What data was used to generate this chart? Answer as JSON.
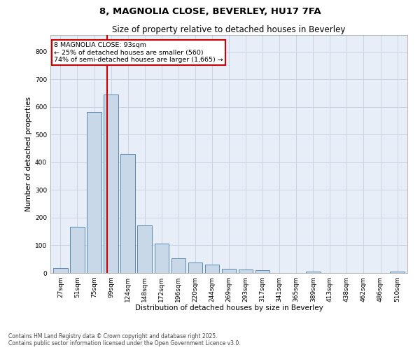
{
  "title1": "8, MAGNOLIA CLOSE, BEVERLEY, HU17 7FA",
  "title2": "Size of property relative to detached houses in Beverley",
  "xlabel": "Distribution of detached houses by size in Beverley",
  "ylabel": "Number of detached properties",
  "categories": [
    "27sqm",
    "51sqm",
    "75sqm",
    "99sqm",
    "124sqm",
    "148sqm",
    "172sqm",
    "196sqm",
    "220sqm",
    "244sqm",
    "269sqm",
    "293sqm",
    "317sqm",
    "341sqm",
    "365sqm",
    "389sqm",
    "413sqm",
    "438sqm",
    "462sqm",
    "486sqm",
    "510sqm"
  ],
  "values": [
    18,
    168,
    582,
    645,
    430,
    172,
    105,
    53,
    38,
    30,
    14,
    12,
    9,
    0,
    0,
    6,
    0,
    0,
    0,
    0,
    6
  ],
  "bar_color": "#c8d8e8",
  "bar_edge_color": "#5a8ab0",
  "bar_edge_width": 0.7,
  "vline_color": "#cc0000",
  "annotation_text": "8 MAGNOLIA CLOSE: 93sqm\n← 25% of detached houses are smaller (560)\n74% of semi-detached houses are larger (1,665) →",
  "annotation_box_color": "#cc0000",
  "annotation_bg_color": "#ffffff",
  "ylim": [
    0,
    860
  ],
  "yticks": [
    0,
    100,
    200,
    300,
    400,
    500,
    600,
    700,
    800
  ],
  "grid_color": "#c8d4e4",
  "bg_color": "#e8eef8",
  "footer_text": "Contains HM Land Registry data © Crown copyright and database right 2025.\nContains public sector information licensed under the Open Government Licence v3.0.",
  "title_fontsize": 9.5,
  "subtitle_fontsize": 8.5,
  "axis_label_fontsize": 7.5,
  "tick_fontsize": 6.5,
  "annotation_fontsize": 6.8,
  "footer_fontsize": 5.5
}
